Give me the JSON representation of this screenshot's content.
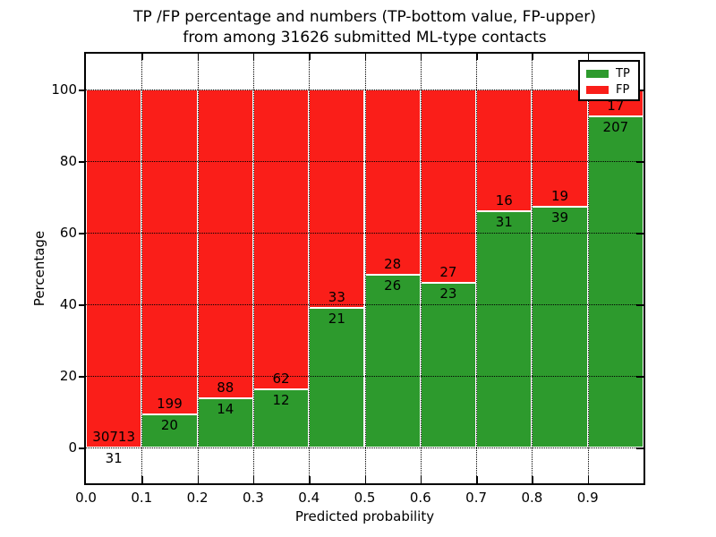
{
  "figure": {
    "title_line1": "TP /FP percentage and numbers (TP-bottom value, FP-upper)",
    "title_line2": "from among 31626 submitted ML-type contacts"
  },
  "chart_data": {
    "type": "bar",
    "stacked": true,
    "title": "TP /FP percentage and numbers (TP-bottom value, FP-upper)\nfrom among 31626 submitted ML-type contacts",
    "xlabel": "Predicted probability",
    "ylabel": "Percentage",
    "total_submitted_contacts": 31626,
    "bins": [
      [
        0.0,
        0.1
      ],
      [
        0.1,
        0.2
      ],
      [
        0.2,
        0.3
      ],
      [
        0.3,
        0.4
      ],
      [
        0.4,
        0.5
      ],
      [
        0.5,
        0.6
      ],
      [
        0.6,
        0.7
      ],
      [
        0.7,
        0.8
      ],
      [
        0.8,
        0.9
      ],
      [
        0.9,
        1.0
      ]
    ],
    "series": [
      {
        "name": "TP",
        "color": "#2d9a2d",
        "counts": [
          31,
          20,
          14,
          12,
          21,
          26,
          23,
          31,
          39,
          207
        ],
        "percent": [
          0.1,
          9.13,
          13.73,
          16.22,
          38.89,
          48.15,
          46.0,
          65.96,
          67.24,
          92.41
        ]
      },
      {
        "name": "FP",
        "color": "#fa1e19",
        "counts": [
          30713,
          199,
          88,
          62,
          33,
          28,
          27,
          16,
          19,
          17
        ],
        "percent": [
          99.9,
          90.87,
          86.27,
          83.78,
          61.11,
          51.85,
          54.0,
          34.04,
          32.76,
          7.59
        ]
      }
    ],
    "bar_edge_color": "#ffffff",
    "x_ticks": [
      0.0,
      0.1,
      0.2,
      0.3,
      0.4,
      0.5,
      0.6,
      0.7,
      0.8,
      0.9
    ],
    "x_tick_labels": [
      "0.0",
      "0.1",
      "0.2",
      "0.3",
      "0.4",
      "0.5",
      "0.6",
      "0.7",
      "0.8",
      "0.9"
    ],
    "y_ticks": [
      0,
      20,
      40,
      60,
      80,
      100
    ],
    "y_tick_labels": [
      "0",
      "20",
      "40",
      "60",
      "80",
      "100"
    ],
    "xlim": [
      0.0,
      1.0
    ],
    "ylim": [
      -10,
      110
    ],
    "grid": true,
    "grid_style": "dotted",
    "legend": {
      "position": "upper right",
      "entries": [
        {
          "label": "TP",
          "color": "#2d9a2d"
        },
        {
          "label": "FP",
          "color": "#fa1e19"
        }
      ]
    }
  }
}
